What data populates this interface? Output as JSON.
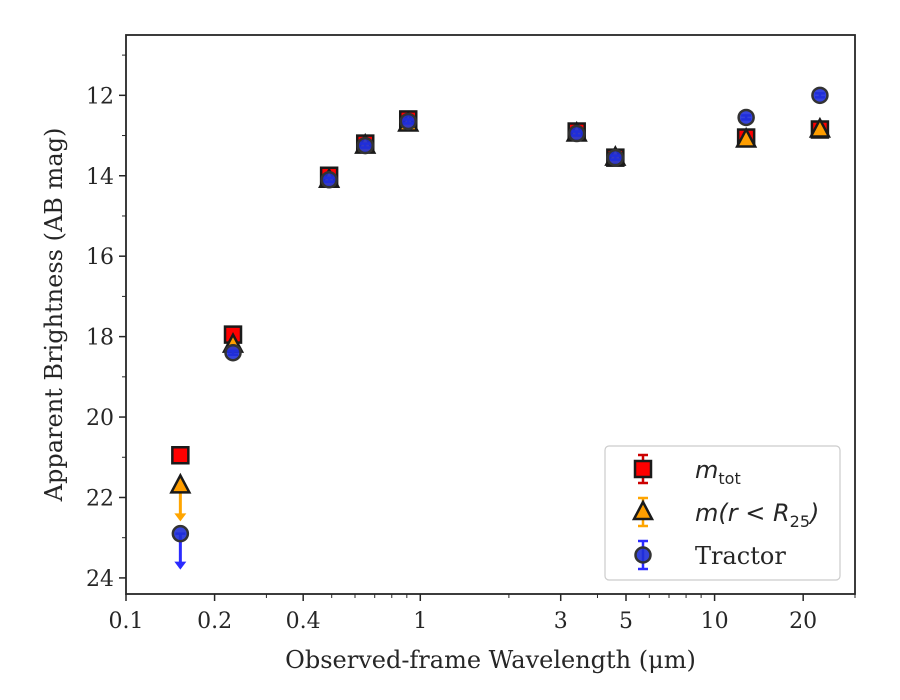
{
  "chart_data": {
    "type": "scatter",
    "title": "",
    "xlabel": "Observed-frame Wavelength (μm)",
    "ylabel": "Apparent Brightness (AB mag)",
    "x_scale": "log",
    "xlim": [
      0.1,
      30
    ],
    "ylim": [
      24.4,
      10.5
    ],
    "y_inverted": true,
    "x_tick_labels": [
      "0.1",
      "0.2",
      "0.4",
      "1",
      "3",
      "5",
      "10",
      "20"
    ],
    "y_tick_labels": [
      "12",
      "14",
      "16",
      "18",
      "20",
      "22",
      "24"
    ],
    "grid": false,
    "legend_position": "lower-right",
    "series": [
      {
        "name": "m_tot",
        "legend_label": "m",
        "legend_sub": "tot",
        "marker": "square",
        "color": "#ff0000",
        "errcolor": "#cc0000",
        "points": [
          {
            "x": 0.153,
            "y": 20.95,
            "err": 0.06
          },
          {
            "x": 0.231,
            "y": 17.95,
            "err": 0.06
          },
          {
            "x": 0.49,
            "y": 14.0,
            "err": 0.05
          },
          {
            "x": 0.65,
            "y": 13.2,
            "err": 0.05
          },
          {
            "x": 0.91,
            "y": 12.6,
            "err": 0.05
          },
          {
            "x": 3.4,
            "y": 12.9,
            "err": 0.05
          },
          {
            "x": 4.6,
            "y": 13.55,
            "err": 0.05
          },
          {
            "x": 12.8,
            "y": 13.05,
            "err": 0.1
          },
          {
            "x": 22.8,
            "y": 12.85,
            "err": 0.05
          }
        ]
      },
      {
        "name": "m(r < R_25)",
        "legend_label": "m(r < R",
        "legend_sub": "25",
        "legend_tail": ")",
        "marker": "triangle",
        "color": "#ff9e00",
        "errcolor": "#ffa500",
        "points": [
          {
            "x": 0.153,
            "y": 21.7,
            "upper_limit": true
          },
          {
            "x": 0.231,
            "y": 18.2,
            "err": 0.06
          },
          {
            "x": 0.49,
            "y": 14.1,
            "err": 0.05
          },
          {
            "x": 0.65,
            "y": 13.25,
            "err": 0.05
          },
          {
            "x": 0.91,
            "y": 12.7,
            "err": 0.05
          },
          {
            "x": 3.4,
            "y": 12.95,
            "err": 0.05
          },
          {
            "x": 4.6,
            "y": 13.55,
            "err": 0.05
          },
          {
            "x": 12.8,
            "y": 13.1,
            "err": 0.06
          },
          {
            "x": 22.8,
            "y": 12.85,
            "err": 0.05
          }
        ]
      },
      {
        "name": "Tractor",
        "legend_label": "Tractor",
        "marker": "circle",
        "color": "#1f2fd6",
        "errcolor": "#2b2bff",
        "points": [
          {
            "x": 0.153,
            "y": 22.9,
            "upper_limit": true
          },
          {
            "x": 0.231,
            "y": 18.4,
            "err": 0.05
          },
          {
            "x": 0.49,
            "y": 14.1,
            "err": 0.05
          },
          {
            "x": 0.65,
            "y": 13.25,
            "err": 0.05
          },
          {
            "x": 0.91,
            "y": 12.65,
            "err": 0.05
          },
          {
            "x": 3.4,
            "y": 12.95,
            "err": 0.05
          },
          {
            "x": 4.6,
            "y": 13.55,
            "err": 0.05
          },
          {
            "x": 12.8,
            "y": 12.55,
            "err": 0.05
          },
          {
            "x": 22.8,
            "y": 12.0,
            "err": 0.05
          }
        ]
      }
    ]
  }
}
